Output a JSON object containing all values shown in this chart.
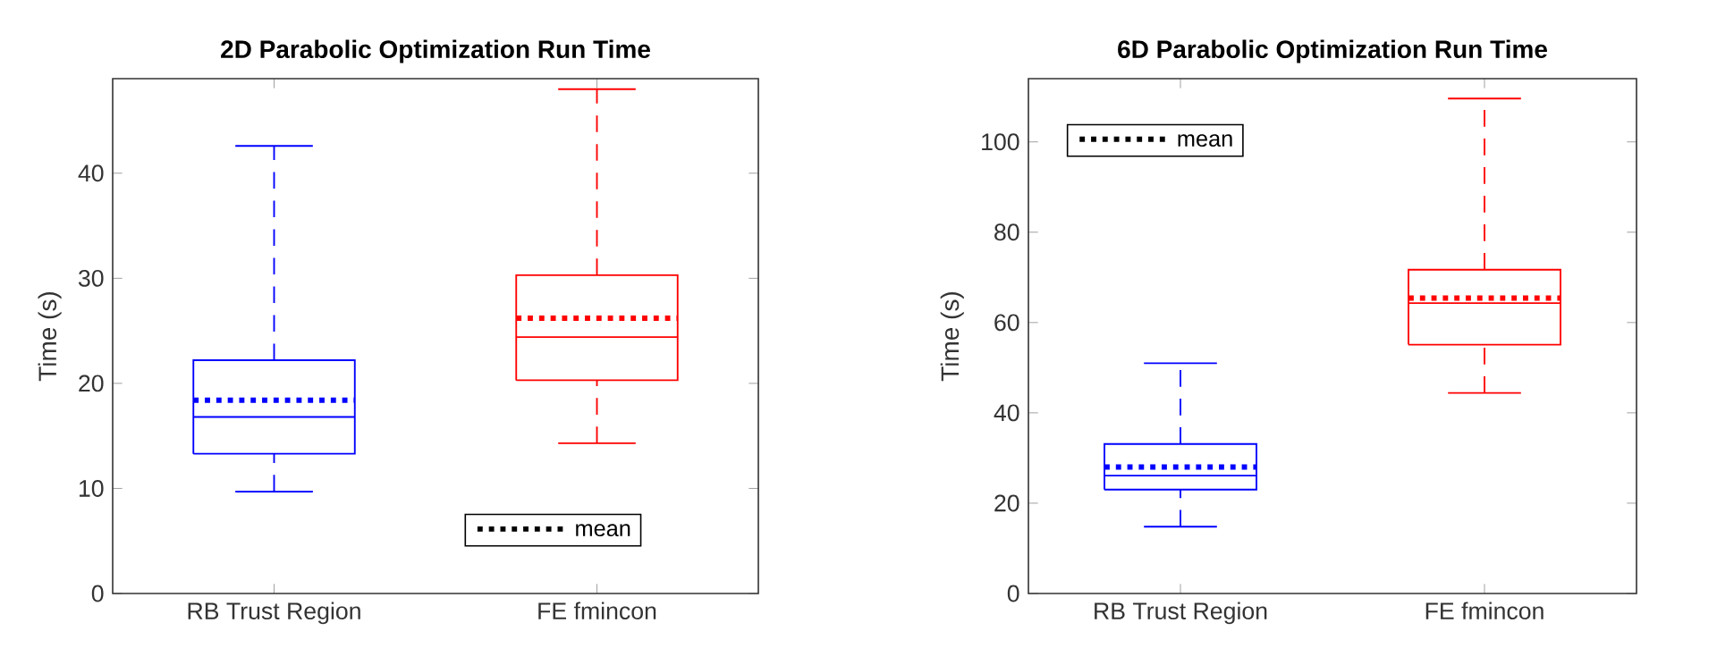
{
  "chart_data": [
    {
      "type": "box",
      "title": "2D Parabolic Optimization Run Time",
      "ylabel": "Time (s)",
      "categories": [
        "RB Trust Region",
        "FE fmincon"
      ],
      "colors": [
        "#0000ff",
        "#ff0000"
      ],
      "boxes": [
        {
          "low": 9.7,
          "q1": 13.3,
          "median": 16.8,
          "q3": 22.2,
          "high": 42.6,
          "mean": 18.4
        },
        {
          "low": 14.3,
          "q1": 20.3,
          "median": 24.4,
          "q3": 30.3,
          "high": 48.0,
          "mean": 26.2
        }
      ],
      "ylim": [
        0,
        49
      ],
      "yticks": [
        0,
        10,
        20,
        30,
        40
      ],
      "line_style": "dashed",
      "annotations": [
        "mean"
      ]
    },
    {
      "type": "box",
      "title": "6D Parabolic Optimization Run Time",
      "ylabel": "Time (s)",
      "categories": [
        "RB Trust Region",
        "FE fmincon"
      ],
      "colors": [
        "#0000ff",
        "#ff0000"
      ],
      "boxes": [
        {
          "low": 14.8,
          "q1": 23.0,
          "median": 26.1,
          "q3": 33.1,
          "high": 51.0,
          "mean": 28.0
        },
        {
          "low": 44.4,
          "q1": 55.1,
          "median": 64.3,
          "q3": 71.7,
          "high": 109.6,
          "mean": 65.4
        }
      ],
      "ylim": [
        0,
        114
      ],
      "yticks": [
        0,
        20,
        40,
        60,
        80,
        100
      ],
      "line_style": "dashed",
      "annotations": [
        "mean"
      ]
    }
  ]
}
